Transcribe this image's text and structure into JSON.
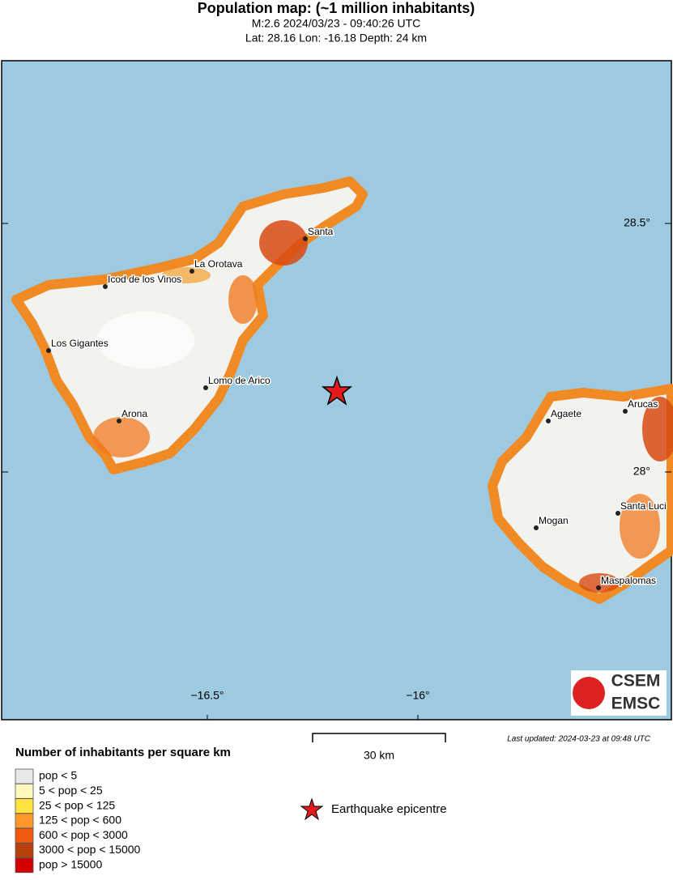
{
  "header": {
    "title": "Population map: (~1 million inhabitants)",
    "event": "M:2.6 2024/03/23 - 09:40:26 UTC",
    "location": "Lat: 28.16 Lon: -16.18 Depth: 24 km"
  },
  "map": {
    "lon_labels": [
      "−16.5°",
      "−16°"
    ],
    "lat_labels": [
      "28.5°",
      "28°"
    ],
    "places": [
      "Santa",
      "La Orotava",
      "Icod de los Vinos",
      "Los Gigantes",
      "Lomo de Arico",
      "Arona",
      "Arucas",
      "Agaete",
      "Santa Luci",
      "Mogan",
      "Maspalomas"
    ],
    "logo": [
      "CSEM",
      "EMSC"
    ]
  },
  "scale": {
    "label": "30 km"
  },
  "last_updated": "Last updated: 2024-03-23 at 09:48 UTC",
  "legend": {
    "title": "Number of inhabitants per square km",
    "items": [
      {
        "label": "pop < 5",
        "color": "#e8e8e8"
      },
      {
        "label": "5 < pop < 25",
        "color": "#fff7bc"
      },
      {
        "label": "25 < pop < 125",
        "color": "#fee440"
      },
      {
        "label": "125 < pop < 600",
        "color": "#fe9929"
      },
      {
        "label": "600 < pop < 3000",
        "color": "#f05a10"
      },
      {
        "label": "3000 < pop < 15000",
        "color": "#b8400c"
      },
      {
        "label": "pop > 15000",
        "color": "#d40000"
      }
    ],
    "epicentre": "Earthquake epicentre"
  }
}
